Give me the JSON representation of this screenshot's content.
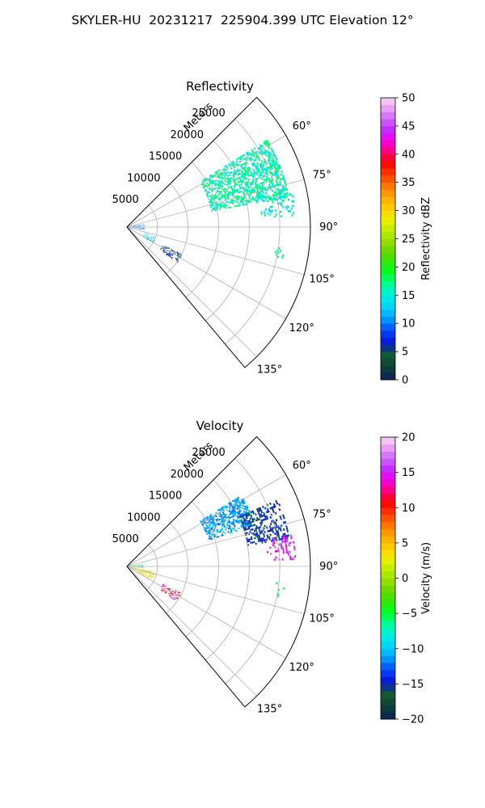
{
  "figure": {
    "title": "SKYLER-HU  20231217  225904.399 UTC Elevation 12°"
  },
  "chart_data": [
    {
      "type": "heatmap",
      "subtype": "polar-sector-radar",
      "title": "Reflectivity",
      "radial_axis_label": "Meters",
      "radial_ticks": [
        5000,
        10000,
        15000,
        20000,
        25000
      ],
      "radial_tick_labels": [
        "5000",
        "10000",
        "15000",
        "20000",
        "25000"
      ],
      "rlim": [
        0,
        30000
      ],
      "theta_range_deg": [
        45,
        140
      ],
      "theta_ticks_deg": [
        60,
        75,
        90,
        105,
        120,
        135
      ],
      "theta_tick_labels": [
        "60°",
        "75°",
        "90°",
        "105°",
        "120°",
        "135°"
      ],
      "grid": true,
      "colorbar": {
        "label": "Reflectivity dBZ",
        "vmin": 0,
        "vmax": 50,
        "ticks": [
          0,
          5,
          10,
          15,
          20,
          25,
          30,
          35,
          40,
          45,
          50
        ],
        "tick_labels": [
          "0",
          "5",
          "10",
          "15",
          "20",
          "25",
          "30",
          "35",
          "40",
          "45",
          "50"
        ],
        "colormap": "pyart_HomeyerRainbow-like"
      },
      "echo_regions": [
        {
          "name": "main-echo",
          "theta_deg": [
            58,
            79
          ],
          "r_m": [
            14000,
            27000
          ],
          "value": 16,
          "spread": 3,
          "density": 0.55
        },
        {
          "name": "outer-echo",
          "theta_deg": [
            76,
            86
          ],
          "r_m": [
            22000,
            27500
          ],
          "value": 15,
          "spread": 3,
          "density": 0.25
        },
        {
          "name": "near-echo-a",
          "theta_deg": [
            80,
            98
          ],
          "r_m": [
            300,
            2800
          ],
          "value": 9,
          "spread": 4,
          "density": 0.45
        },
        {
          "name": "near-echo-b",
          "theta_deg": [
            108,
            122
          ],
          "r_m": [
            3000,
            5000
          ],
          "value": 13,
          "spread": 2,
          "density": 0.35
        },
        {
          "name": "mid-echo",
          "theta_deg": [
            116,
            125
          ],
          "r_m": [
            6500,
            10000
          ],
          "value": 6,
          "spread": 3,
          "density": 0.4
        },
        {
          "name": "far-speck",
          "theta_deg": [
            96,
            102
          ],
          "r_m": [
            24500,
            26000
          ],
          "value": 17,
          "spread": 1,
          "density": 0.15
        }
      ]
    },
    {
      "type": "heatmap",
      "subtype": "polar-sector-radar",
      "title": "Velocity",
      "radial_axis_label": "Meters",
      "radial_ticks": [
        5000,
        10000,
        15000,
        20000,
        25000
      ],
      "radial_tick_labels": [
        "5000",
        "10000",
        "15000",
        "20000",
        "25000"
      ],
      "rlim": [
        0,
        30000
      ],
      "theta_range_deg": [
        45,
        140
      ],
      "theta_ticks_deg": [
        60,
        75,
        90,
        105,
        120,
        135
      ],
      "theta_tick_labels": [
        "60°",
        "75°",
        "90°",
        "105°",
        "120°",
        "135°"
      ],
      "grid": true,
      "colorbar": {
        "label": "Velocity (m/s)",
        "vmin": -20,
        "vmax": 20,
        "ticks": [
          -20,
          -15,
          -10,
          -5,
          0,
          5,
          10,
          15,
          20
        ],
        "tick_labels": [
          "−20",
          "−15",
          "−10",
          "−5",
          "0",
          "5",
          "10",
          "15",
          "20"
        ],
        "colormap": "pyart_HomeyerRainbow-like"
      },
      "echo_regions": [
        {
          "name": "main-echo",
          "theta_deg": [
            58,
            72
          ],
          "r_m": [
            14000,
            22000
          ],
          "value": -11,
          "spread": 2,
          "density": 0.55
        },
        {
          "name": "main-echo-far",
          "theta_deg": [
            66,
            80
          ],
          "r_m": [
            20000,
            27000
          ],
          "value": -15,
          "spread": 2,
          "density": 0.45
        },
        {
          "name": "outer-echo",
          "theta_deg": [
            79,
            87
          ],
          "r_m": [
            23000,
            27500
          ],
          "value": 15,
          "spread": 2,
          "density": 0.3
        },
        {
          "name": "near-echo-a",
          "theta_deg": [
            82,
            96
          ],
          "r_m": [
            300,
            2500
          ],
          "value": -5,
          "spread": 5,
          "density": 0.4
        },
        {
          "name": "near-echo-b",
          "theta_deg": [
            100,
            118
          ],
          "r_m": [
            500,
            4500
          ],
          "value": 3,
          "spread": 4,
          "density": 0.45
        },
        {
          "name": "mid-echo",
          "theta_deg": [
            116,
            125
          ],
          "r_m": [
            6500,
            10000
          ],
          "value": 12,
          "spread": 5,
          "density": 0.35
        },
        {
          "name": "far-speck",
          "theta_deg": [
            96,
            102
          ],
          "r_m": [
            24500,
            26000
          ],
          "value": -6,
          "spread": 1,
          "density": 0.15
        }
      ]
    }
  ]
}
